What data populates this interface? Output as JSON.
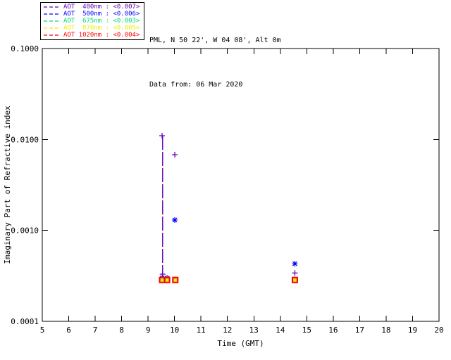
{
  "header": {
    "station_line": "PML, N 50 22', W 04 08', Alt 0m",
    "date_line": "Data from: 06 Mar 2020"
  },
  "legend": {
    "entries": [
      {
        "label": "AOT  400nm : <0.007>",
        "color": "#6400b4"
      },
      {
        "label": "AOT  500nm : <0.006>",
        "color": "#0000ff"
      },
      {
        "label": "AOT  675nm : <0.003>",
        "color": "#00dc78"
      },
      {
        "label": "AOT  870nm : <0.005>",
        "color": "#eded00"
      },
      {
        "label": "AOT 1020nm : <0.004>",
        "color": "#ff0000"
      }
    ]
  },
  "chart_data": {
    "type": "scatter",
    "title": "",
    "xlabel": "Time (GMT)",
    "ylabel": "Imaginary Part of Refractive index",
    "xlim": [
      5,
      20
    ],
    "ylim": [
      0.0001,
      0.1
    ],
    "yscale": "log",
    "grid": false,
    "x_ticks": [
      5,
      6,
      7,
      8,
      9,
      10,
      11,
      12,
      13,
      14,
      15,
      16,
      17,
      18,
      19,
      20
    ],
    "y_ticks": [
      {
        "value": 0.1,
        "label": "0.1000"
      },
      {
        "value": 0.01,
        "label": "0.0100"
      },
      {
        "value": 0.001,
        "label": "0.0010"
      },
      {
        "value": 0.0001,
        "label": "0.0001"
      }
    ],
    "series": [
      {
        "name": "AOT 400nm",
        "color": "#6400b4",
        "marker": "plus",
        "points": [
          [
            9.53,
            0.011
          ],
          [
            9.55,
            0.00033
          ],
          [
            10.01,
            0.0068
          ],
          [
            14.55,
            0.00034
          ]
        ]
      },
      {
        "name": "AOT 500nm",
        "color": "#0000ff",
        "marker": "asterisk",
        "points": [
          [
            9.53,
            0.0003
          ],
          [
            9.72,
            0.0003
          ],
          [
            10.01,
            0.0013
          ],
          [
            14.55,
            0.00043
          ]
        ]
      },
      {
        "name": "AOT 675nm",
        "color": "#00dc78",
        "marker": "asterisk",
        "points": [
          [
            9.53,
            0.00029
          ],
          [
            9.72,
            0.00029
          ],
          [
            10.03,
            0.00029
          ],
          [
            14.55,
            0.00029
          ]
        ]
      },
      {
        "name": "AOT 870nm",
        "color": "#eded00",
        "marker": "asterisk",
        "points": [
          [
            9.53,
            0.000285
          ],
          [
            9.72,
            0.000285
          ],
          [
            10.03,
            0.000285
          ],
          [
            14.55,
            0.000285
          ]
        ]
      },
      {
        "name": "AOT 1020nm",
        "color": "#ff0000",
        "marker": "square",
        "points": [
          [
            9.53,
            0.000285
          ],
          [
            9.72,
            0.000285
          ],
          [
            10.03,
            0.000285
          ],
          [
            14.55,
            0.000285
          ]
        ]
      }
    ],
    "line_segments": [
      {
        "series": "AOT 400nm",
        "from": [
          9.55,
          0.011
        ],
        "to": [
          9.55,
          0.00033
        ],
        "style": "dashed"
      }
    ]
  }
}
